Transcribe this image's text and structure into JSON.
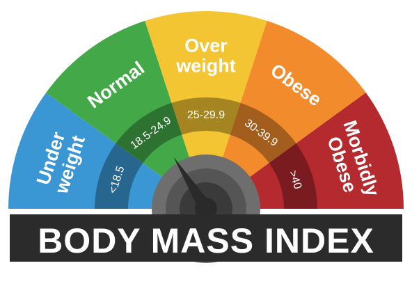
{
  "title": "BODY MASS INDEX",
  "colors": {
    "banner": "#2b2b2b",
    "band_shade": "rgba(0,0,0,0.32)",
    "hub_outer": "#6e6e6e",
    "hub_mid": "#555555",
    "hub_inner": "#3a3a3a",
    "needle": "#2a2a2a"
  },
  "categories": [
    {
      "lines": [
        "Under",
        "weight"
      ],
      "range": "<18.5",
      "color": "#3a97d3"
    },
    {
      "lines": [
        "Normal"
      ],
      "range": "18.5-24.9",
      "color": "#43a848"
    },
    {
      "lines": [
        "Over",
        "weight"
      ],
      "range": "25-29.9",
      "color": "#f3c533"
    },
    {
      "lines": [
        "Obese"
      ],
      "range": "30-39.9",
      "color": "#f18b2b"
    },
    {
      "lines": [
        "Morbidly",
        "Obese"
      ],
      "range": ">40",
      "color": "#b42a2f"
    }
  ],
  "needle": {
    "points_to": "Normal",
    "direction_deg": 122
  }
}
